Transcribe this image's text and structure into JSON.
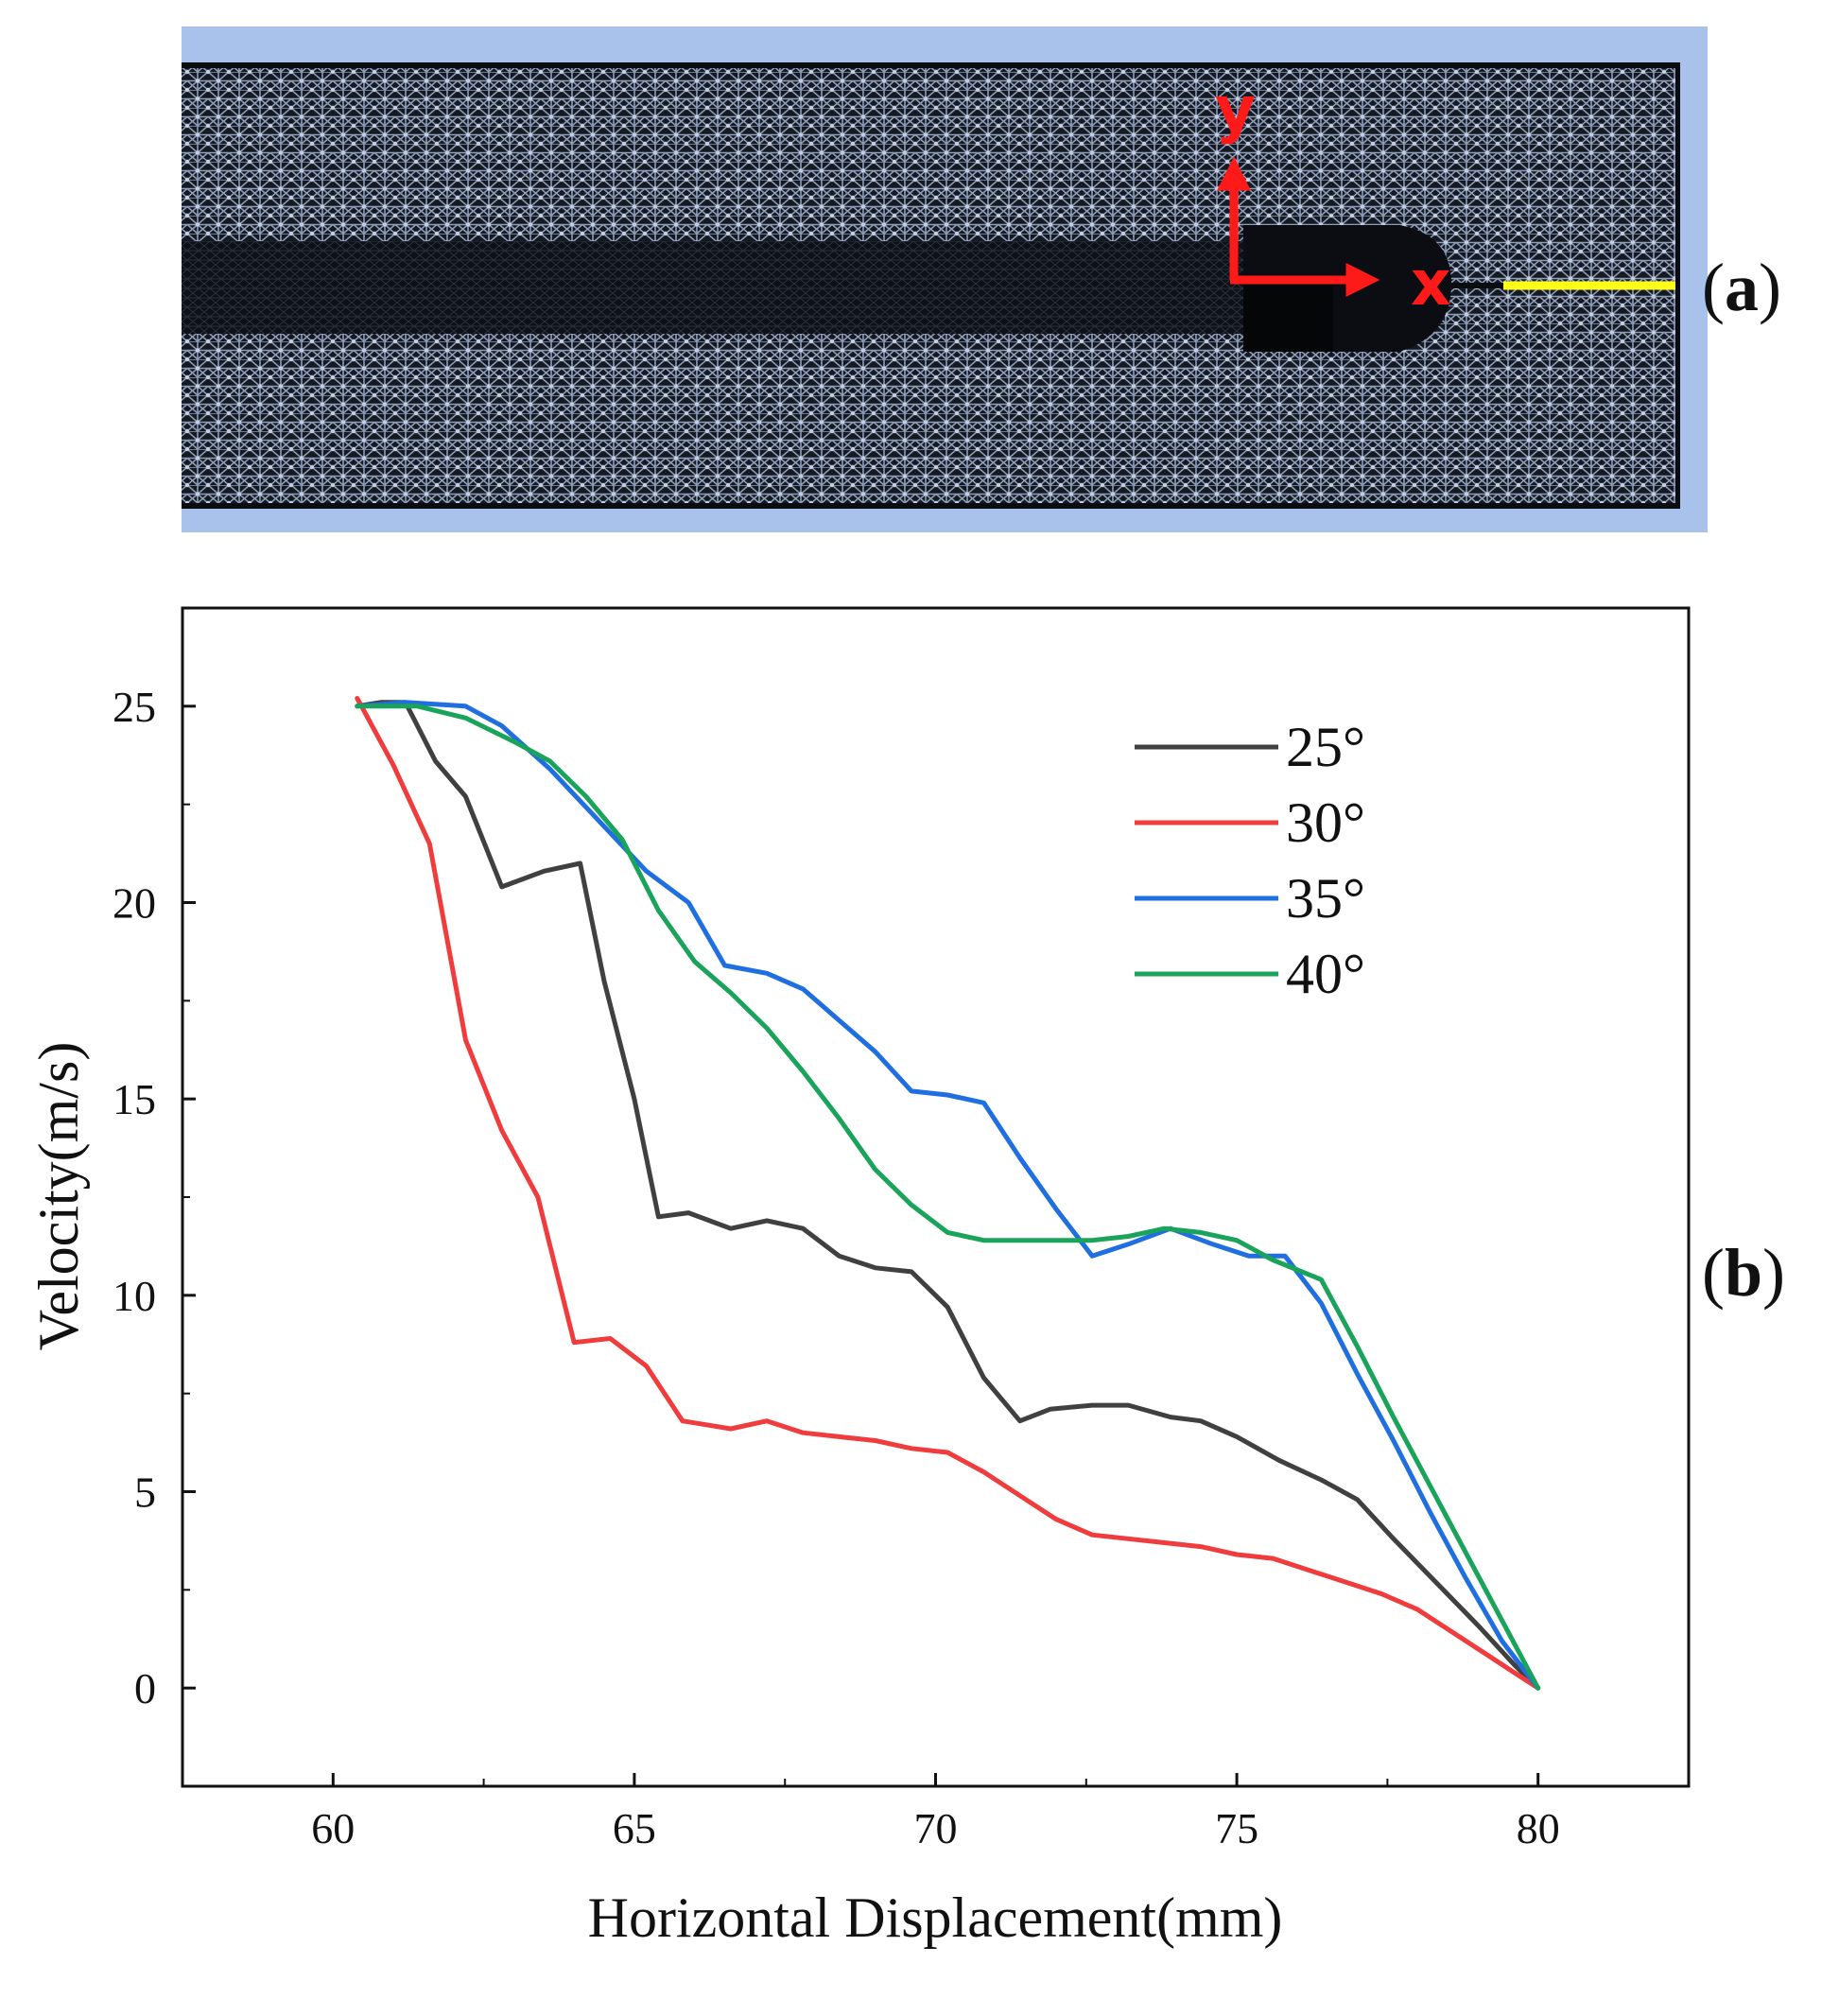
{
  "panel_a": {
    "label_open": "(",
    "label_letter": "a",
    "label_close": ")",
    "axis_y_label": "y",
    "axis_x_label": "x",
    "colors": {
      "frame": "#a9c2ec",
      "mesh_bg": "#141922",
      "mesh_line": "#8f9db8",
      "axis_arrow": "#ff1a1a",
      "probe_line": "#ffff1a"
    }
  },
  "panel_b": {
    "label_open": "(",
    "label_letter": "b",
    "label_close": ")"
  },
  "chart_data": {
    "type": "line",
    "title": "",
    "xlabel": "Horizontal Displacement(mm)",
    "ylabel": "Velocity(m/s)",
    "xlim": [
      57.5,
      82.5
    ],
    "ylim": [
      -2.5,
      27.5
    ],
    "x_ticks": [
      60,
      65,
      70,
      75,
      80
    ],
    "y_ticks": [
      0,
      5,
      10,
      15,
      20,
      25
    ],
    "x_tick_labels": [
      "60",
      "65",
      "70",
      "75",
      "80"
    ],
    "y_tick_labels": [
      "0",
      "5",
      "10",
      "15",
      "20",
      "25"
    ],
    "legend_position": "top-right",
    "series": [
      {
        "name": "25°",
        "color": "#404040",
        "x": [
          60.4,
          60.8,
          61.2,
          61.7,
          62.2,
          62.8,
          63.5,
          64.1,
          64.5,
          65.0,
          65.4,
          65.9,
          66.6,
          67.2,
          67.8,
          68.4,
          69.0,
          69.6,
          70.2,
          70.8,
          71.4,
          71.9,
          72.6,
          73.2,
          73.9,
          74.4,
          75.0,
          75.7,
          76.4,
          77.0,
          77.6,
          78.3,
          79.0,
          79.6,
          80.0
        ],
        "y": [
          25.0,
          25.1,
          25.1,
          23.6,
          22.7,
          20.4,
          20.8,
          21.0,
          18.0,
          15.0,
          12.0,
          12.1,
          11.7,
          11.9,
          11.7,
          11.0,
          10.7,
          10.6,
          9.7,
          7.9,
          6.8,
          7.1,
          7.2,
          7.2,
          6.9,
          6.8,
          6.4,
          5.8,
          5.3,
          4.8,
          3.8,
          2.7,
          1.6,
          0.6,
          0.0
        ]
      },
      {
        "name": "30°",
        "color": "#f03c3c",
        "x": [
          60.4,
          61.0,
          61.6,
          62.2,
          62.8,
          63.4,
          64.0,
          64.6,
          65.2,
          65.8,
          66.6,
          67.2,
          67.8,
          68.4,
          69.0,
          69.6,
          70.2,
          70.8,
          71.4,
          72.0,
          72.6,
          73.2,
          73.8,
          74.4,
          75.0,
          75.6,
          76.2,
          76.8,
          77.4,
          78.0,
          78.6,
          79.2,
          79.6,
          80.0
        ],
        "y": [
          25.2,
          23.5,
          21.5,
          16.5,
          14.2,
          12.5,
          8.8,
          8.9,
          8.2,
          6.8,
          6.6,
          6.8,
          6.5,
          6.4,
          6.3,
          6.1,
          6.0,
          5.5,
          4.9,
          4.3,
          3.9,
          3.8,
          3.7,
          3.6,
          3.4,
          3.3,
          3.0,
          2.7,
          2.4,
          2.0,
          1.4,
          0.8,
          0.4,
          0.0
        ]
      },
      {
        "name": "35°",
        "color": "#1f6fe0",
        "x": [
          60.4,
          61.2,
          62.2,
          62.8,
          63.6,
          64.4,
          65.2,
          65.9,
          66.5,
          67.2,
          67.8,
          68.4,
          69.0,
          69.6,
          70.2,
          70.8,
          71.4,
          72.0,
          72.6,
          73.2,
          73.9,
          74.6,
          75.2,
          75.8,
          76.4,
          77.0,
          77.6,
          78.2,
          78.8,
          79.4,
          80.0
        ],
        "y": [
          25.0,
          25.1,
          25.0,
          24.5,
          23.4,
          22.1,
          20.8,
          20.0,
          18.4,
          18.2,
          17.8,
          17.0,
          16.2,
          15.2,
          15.1,
          14.9,
          13.5,
          12.2,
          11.0,
          11.3,
          11.7,
          11.3,
          11.0,
          11.0,
          9.8,
          8.0,
          6.3,
          4.5,
          2.8,
          1.2,
          0.0
        ]
      },
      {
        "name": "40°",
        "color": "#1aa35a",
        "x": [
          60.4,
          61.4,
          62.2,
          63.0,
          63.6,
          64.2,
          64.8,
          65.4,
          66.0,
          66.6,
          67.2,
          67.8,
          68.4,
          69.0,
          69.6,
          70.2,
          70.8,
          71.4,
          72.0,
          72.6,
          73.2,
          73.8,
          74.4,
          75.0,
          75.6,
          76.4,
          77.0,
          77.6,
          78.4,
          79.2,
          80.0
        ],
        "y": [
          25.0,
          25.0,
          24.7,
          24.1,
          23.6,
          22.7,
          21.6,
          19.8,
          18.5,
          17.7,
          16.8,
          15.7,
          14.5,
          13.2,
          12.3,
          11.6,
          11.4,
          11.4,
          11.4,
          11.4,
          11.5,
          11.7,
          11.6,
          11.4,
          10.9,
          10.4,
          8.7,
          6.9,
          4.6,
          2.3,
          0.0
        ]
      }
    ]
  }
}
